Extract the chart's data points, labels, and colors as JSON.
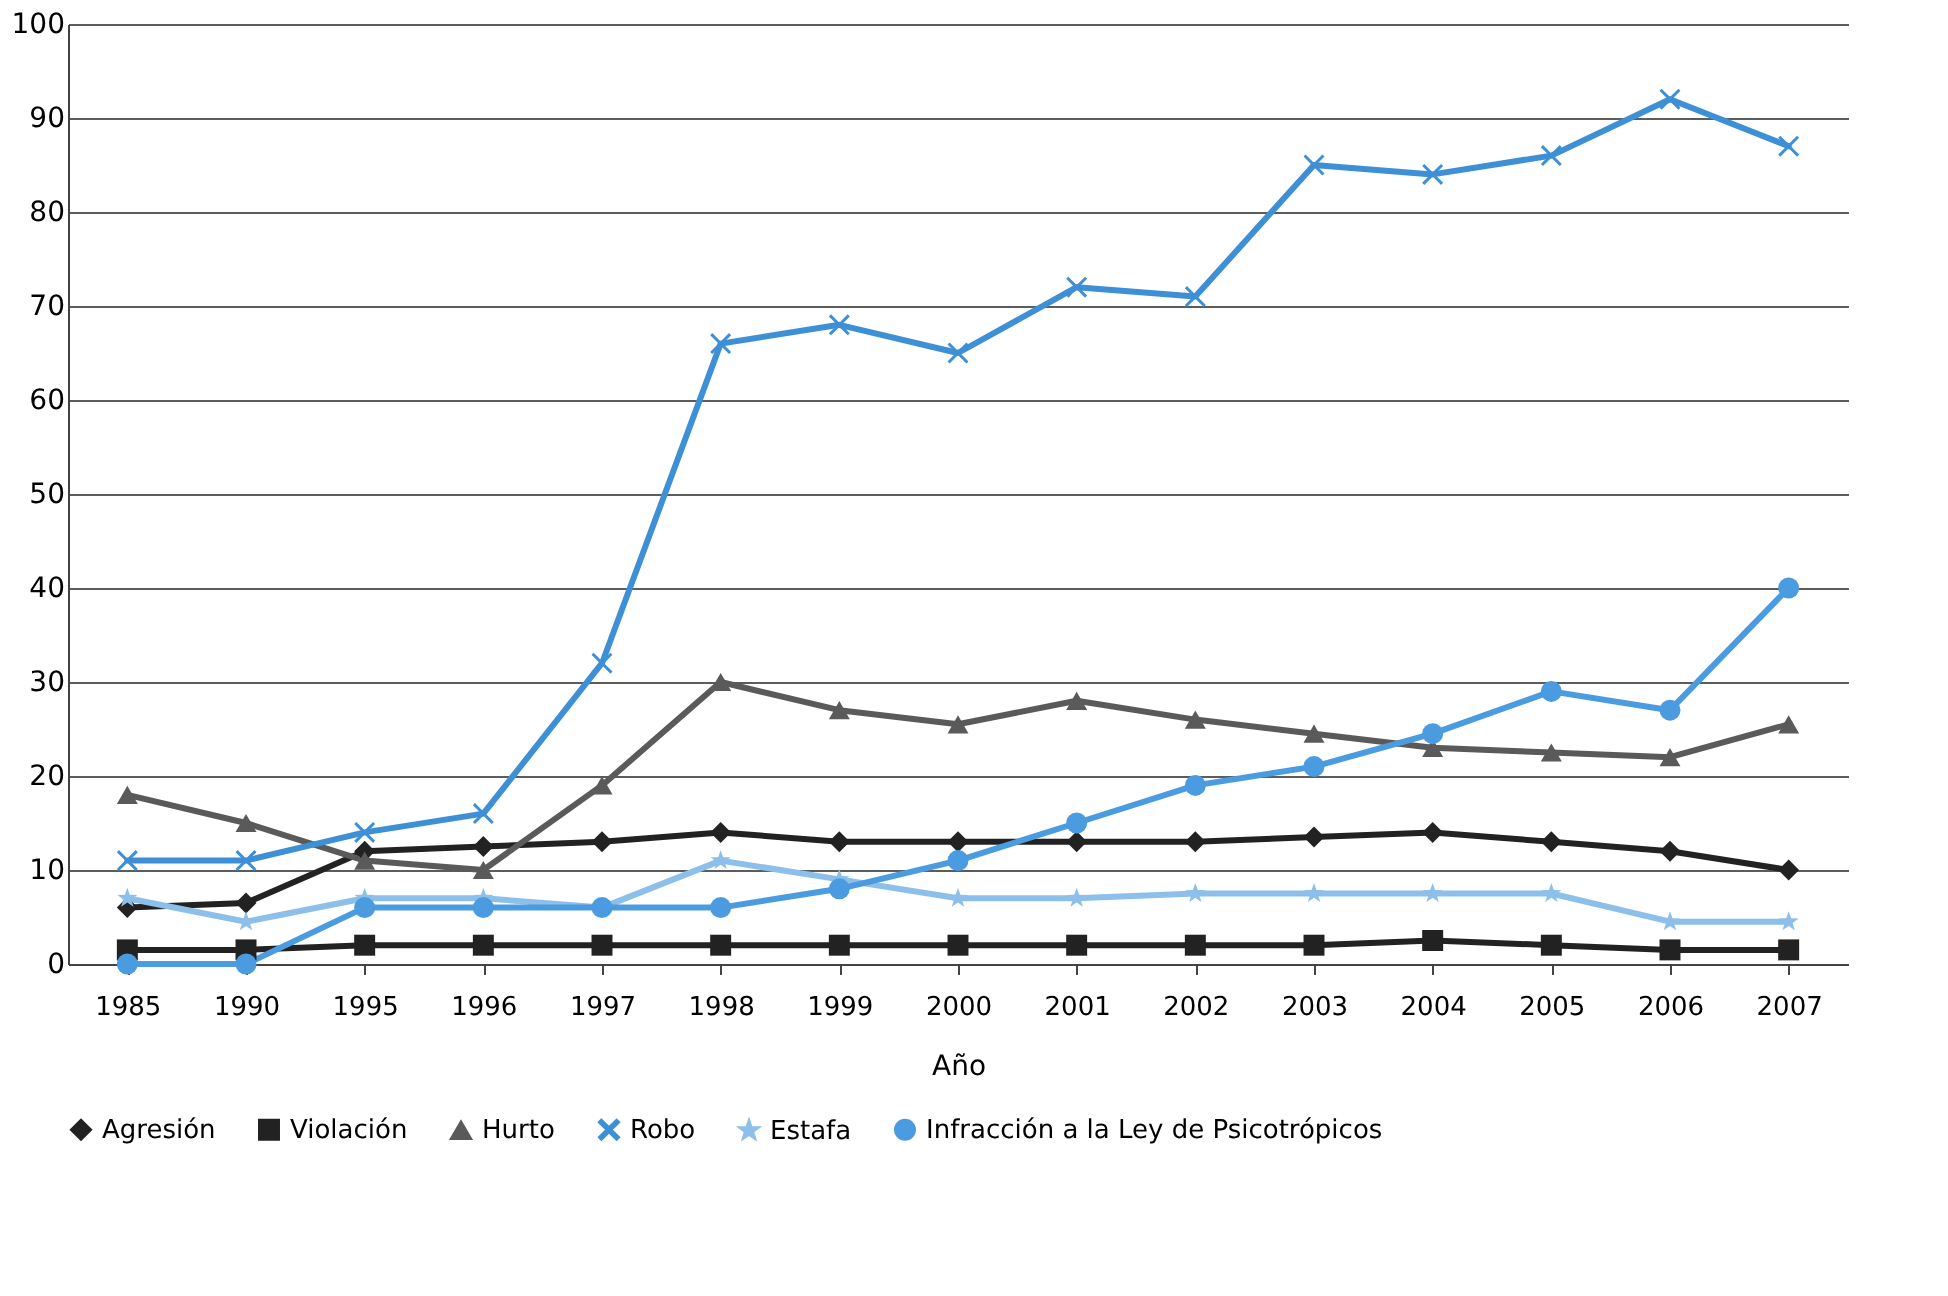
{
  "chart_data": {
    "type": "line",
    "xlabel": "Año",
    "categories": [
      "1985",
      "1990",
      "1995",
      "1996",
      "1997",
      "1998",
      "1999",
      "2000",
      "2001",
      "2002",
      "2003",
      "2004",
      "2005",
      "2006",
      "2007"
    ],
    "series": [
      {
        "name": "Agresión",
        "color": "#222222",
        "marker": "diamond",
        "values": [
          6,
          6.5,
          12,
          12.5,
          13,
          14,
          13,
          13,
          13,
          13,
          13.5,
          14,
          13,
          12,
          10
        ]
      },
      {
        "name": "Violación",
        "color": "#222222",
        "marker": "square",
        "values": [
          1.5,
          1.5,
          2,
          2,
          2,
          2,
          2,
          2,
          2,
          2,
          2,
          2.5,
          2,
          1.5,
          1.5
        ]
      },
      {
        "name": "Hurto",
        "color": "#5a5a5a",
        "marker": "triangle",
        "values": [
          18,
          15,
          11,
          10,
          19,
          30,
          27,
          25.5,
          28,
          26,
          24.5,
          23,
          22.5,
          22,
          25.5
        ]
      },
      {
        "name": "Robo",
        "color": "#3d8fd6",
        "marker": "cross",
        "values": [
          11,
          11,
          14,
          16,
          32,
          66,
          68,
          65,
          72,
          71,
          85,
          84,
          86,
          92,
          87
        ]
      },
      {
        "name": "Estafa",
        "color": "#8cc0ea",
        "marker": "star",
        "values": [
          7,
          4.5,
          7,
          7,
          6,
          11,
          9,
          7,
          7,
          7.5,
          7.5,
          7.5,
          7.5,
          4.5,
          4.5
        ]
      },
      {
        "name": "Infracción a la Ley de Psicotrópicos",
        "color": "#4a9be0",
        "marker": "circle",
        "values": [
          0,
          0,
          6,
          6,
          6,
          6,
          8,
          11,
          15,
          19,
          21,
          24.5,
          29,
          27,
          40
        ]
      }
    ],
    "ylim": [
      0,
      100
    ],
    "yticks": [
      0,
      10,
      20,
      30,
      40,
      50,
      60,
      70,
      80,
      90,
      100
    ],
    "grid": "y",
    "legend": "bottom"
  }
}
